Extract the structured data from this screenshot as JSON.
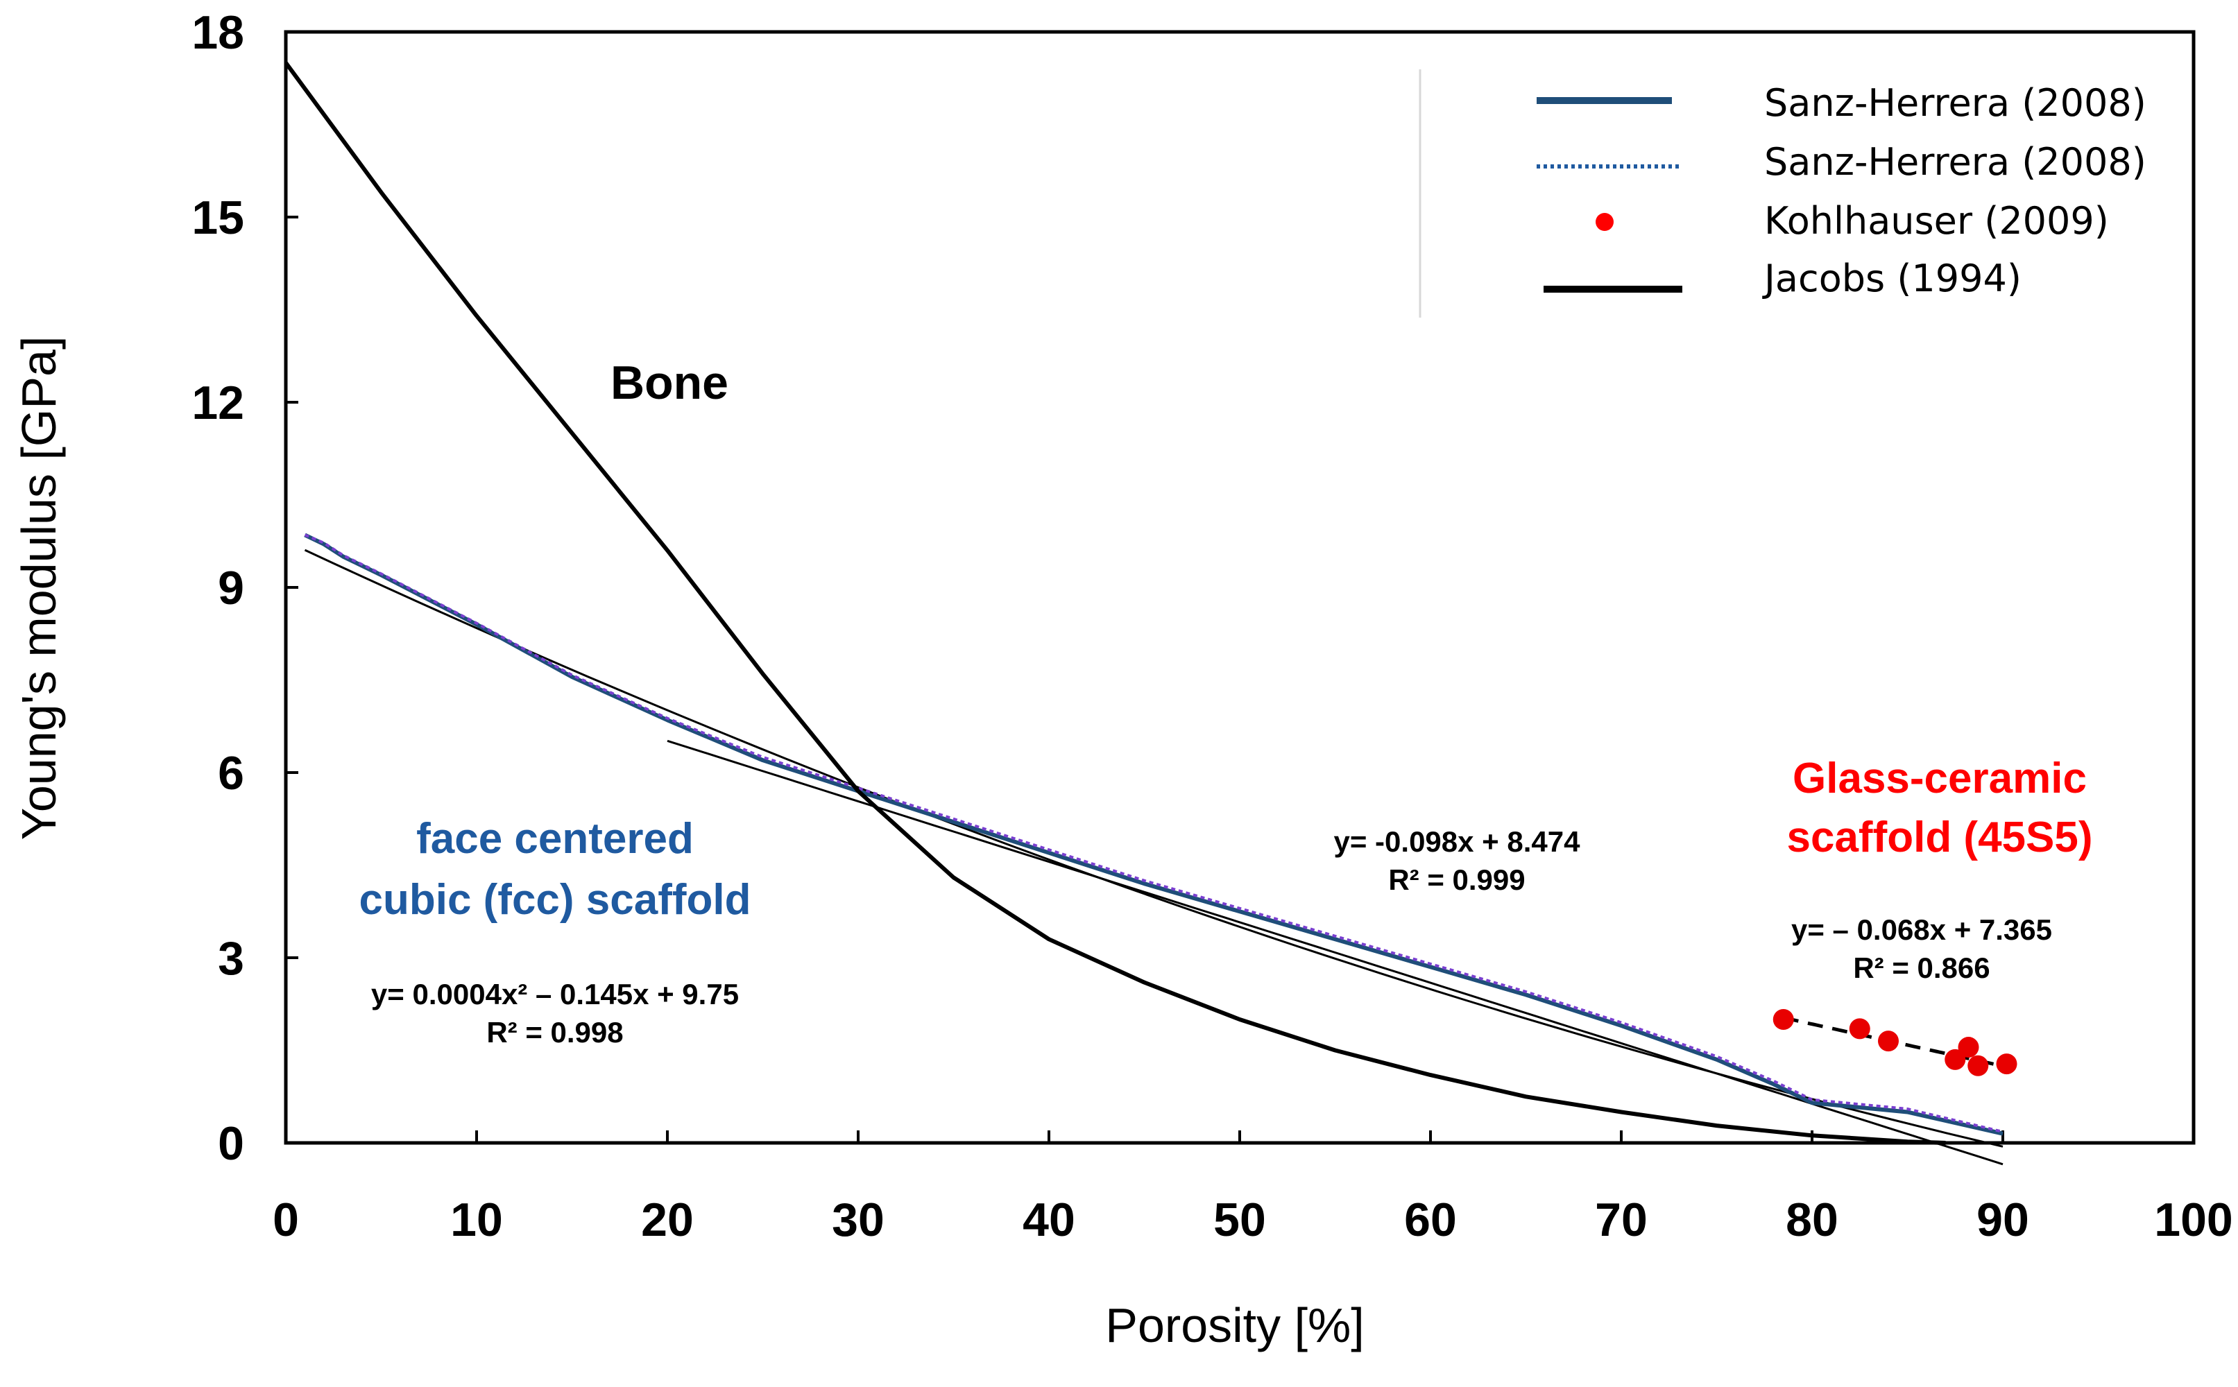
{
  "chart_data": {
    "type": "line",
    "xlabel": "Porosity [%]",
    "ylabel": "Young's modulus [GPa]",
    "xlim": [
      0,
      100
    ],
    "ylim": [
      0,
      18
    ],
    "xticks": [
      0,
      10,
      20,
      30,
      40,
      50,
      60,
      70,
      80,
      90,
      100
    ],
    "yticks": [
      0,
      3,
      6,
      9,
      12,
      15,
      18
    ],
    "grid": false,
    "legend_position": "top-right",
    "series": [
      {
        "name": "Sanz-Herrera (2008)",
        "style": "solid",
        "color": "#1f4e79",
        "x": [
          1,
          2,
          3,
          5,
          10,
          15,
          20,
          25,
          30,
          35,
          40,
          45,
          50,
          55,
          60,
          65,
          70,
          75,
          78,
          80,
          85,
          90
        ],
        "y": [
          9.85,
          9.7,
          9.5,
          9.2,
          8.4,
          7.55,
          6.85,
          6.2,
          5.7,
          5.2,
          4.7,
          4.2,
          3.75,
          3.3,
          2.85,
          2.4,
          1.9,
          1.35,
          0.95,
          0.65,
          0.5,
          0.15
        ]
      },
      {
        "name": "Sanz-Herrera (2008)",
        "style": "dotted",
        "color": "#7a3fd0",
        "x": [
          1,
          2,
          3,
          5,
          10,
          15,
          20,
          25,
          30,
          35,
          40,
          45,
          50,
          55,
          60,
          65,
          70,
          75,
          78,
          80,
          85,
          90
        ],
        "y": [
          9.85,
          9.72,
          9.52,
          9.22,
          8.42,
          7.58,
          6.88,
          6.25,
          5.75,
          5.25,
          4.75,
          4.25,
          3.8,
          3.35,
          2.9,
          2.45,
          1.95,
          1.4,
          1.0,
          0.7,
          0.55,
          0.18
        ]
      },
      {
        "name": "Kohlhauser (2009)",
        "style": "markers",
        "color": "#e80000",
        "x": [
          78.5,
          82.5,
          84.0,
          87.5,
          88.2,
          88.7,
          90.2
        ],
        "y": [
          2.0,
          1.85,
          1.65,
          1.35,
          1.55,
          1.25,
          1.28
        ]
      },
      {
        "name": "Jacobs (1994)",
        "style": "solid",
        "color": "#000000",
        "x": [
          0,
          5,
          10,
          15,
          20,
          25,
          30,
          35,
          40,
          45,
          50,
          55,
          60,
          65,
          70,
          75,
          80,
          85,
          87
        ],
        "y": [
          17.5,
          15.4,
          13.4,
          11.5,
          9.6,
          7.6,
          5.7,
          4.3,
          3.3,
          2.6,
          2.0,
          1.5,
          1.1,
          0.75,
          0.5,
          0.28,
          0.12,
          0.02,
          0.0
        ]
      }
    ],
    "fits": [
      {
        "name": "fcc polynomial fit",
        "x": [
          1,
          90
        ],
        "form": "0.0004x^2 - 0.145x + 9.75",
        "color": "#000000"
      },
      {
        "name": "fcc linear fit",
        "x": [
          20,
          90
        ],
        "form": "-0.098x + 8.474",
        "color": "#000000"
      },
      {
        "name": "glass-ceramic fit",
        "x": [
          78.5,
          90.2
        ],
        "form": "-0.068x + 7.365",
        "color": "#000000"
      }
    ],
    "annotations": {
      "bone": "Bone",
      "fcc_line1": "face centered",
      "fcc_line2": "cubic (fcc) scaffold",
      "fcc_eq": "y= 0.0004x² – 0.145x + 9.75",
      "fcc_r2": "R² = 0.998",
      "linear_eq": "y= -0.098x + 8.474",
      "linear_r2": "R² = 0.999",
      "glass_line1": "Glass-ceramic",
      "glass_line2": "scaffold (45S5)",
      "glass_eq": "y= – 0.068x + 7.365",
      "glass_r2": "R² = 0.866"
    },
    "annotation_colors": {
      "fcc": "#1f5aa0",
      "glass": "#ff0000"
    }
  }
}
